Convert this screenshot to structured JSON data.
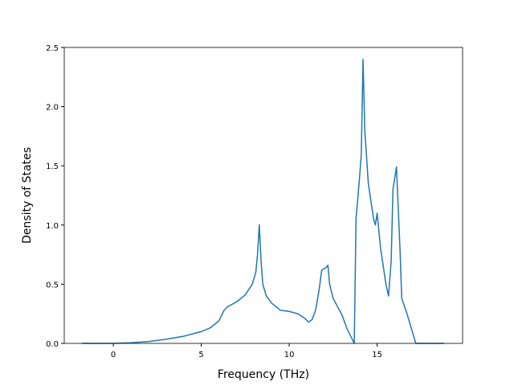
{
  "chart_data": {
    "type": "line",
    "xlabel": "Frequency (THz)",
    "ylabel": "Density of States",
    "xlim": [
      -2.79,
      19.86
    ],
    "ylim": [
      0,
      2.5
    ],
    "xticks": [
      0,
      5,
      10,
      15
    ],
    "yticks": [
      {
        "value": 0,
        "label": "0.0"
      },
      {
        "value": 0.5,
        "label": "0.5"
      },
      {
        "value": 1,
        "label": "1.0"
      },
      {
        "value": 1.5,
        "label": "1.5"
      },
      {
        "value": 2,
        "label": "2.0"
      },
      {
        "value": 2.5,
        "label": "2.5"
      }
    ],
    "color": "#1f77b4",
    "x": [
      -1.78,
      0,
      1,
      2,
      3,
      4,
      5,
      5.5,
      6,
      6.3,
      6.5,
      7,
      7.5,
      7.9,
      8.1,
      8.2,
      8.3,
      8.4,
      8.5,
      8.7,
      9,
      9.5,
      10,
      10.5,
      10.9,
      11.1,
      11.3,
      11.5,
      11.7,
      11.85,
      12.1,
      12.2,
      12.3,
      12.5,
      13,
      13.3,
      13.6,
      13.7,
      13.8,
      14,
      14.1,
      14.2,
      14.3,
      14.5,
      14.8,
      14.9,
      15,
      15.2,
      15.5,
      15.65,
      15.8,
      15.9,
      16.1,
      16.3,
      16.4,
      16.7,
      17,
      17.2,
      18.8
    ],
    "values": [
      0,
      0,
      0.005,
      0.015,
      0.035,
      0.06,
      0.1,
      0.13,
      0.19,
      0.28,
      0.31,
      0.35,
      0.41,
      0.5,
      0.6,
      0.75,
      1.0,
      0.7,
      0.5,
      0.4,
      0.34,
      0.28,
      0.27,
      0.25,
      0.21,
      0.18,
      0.2,
      0.28,
      0.45,
      0.62,
      0.64,
      0.66,
      0.5,
      0.38,
      0.24,
      0.12,
      0.03,
      0,
      1.05,
      1.4,
      1.6,
      2.4,
      1.8,
      1.35,
      1.05,
      1.0,
      1.1,
      0.8,
      0.5,
      0.4,
      0.7,
      1.3,
      1.49,
      0.8,
      0.38,
      0.25,
      0.1,
      0,
      0
    ]
  }
}
